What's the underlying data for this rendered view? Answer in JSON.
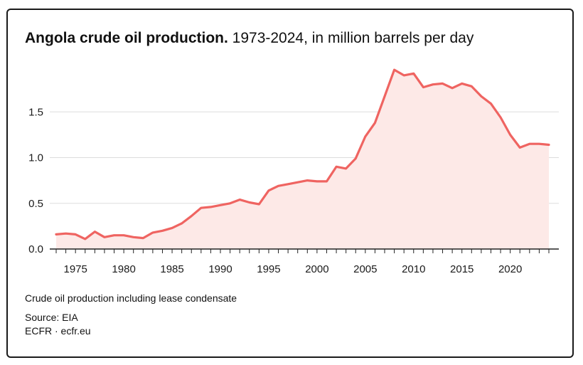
{
  "title": {
    "bold": "Angola crude oil production.",
    "rest": " 1973-2024, in million barrels per day"
  },
  "footer": {
    "note": "Crude oil production including lease condensate",
    "source": "Source: EIA",
    "credit": "ECFR · ecfr.eu"
  },
  "colors": {
    "line": "#ef6461",
    "fill": "#fde9e7",
    "grid": "#dddddd",
    "axis": "#222222"
  },
  "chart_data": {
    "type": "area",
    "title": "Angola crude oil production. 1973-2024, in million barrels per day",
    "xlabel": "",
    "ylabel": "",
    "xlim": [
      1973,
      2024
    ],
    "ylim": [
      0,
      2.0
    ],
    "grid": true,
    "x_ticks": [
      1975,
      1980,
      1985,
      1990,
      1995,
      2000,
      2005,
      2010,
      2015,
      2020
    ],
    "y_ticks": [
      0.0,
      0.5,
      1.0,
      1.5
    ],
    "y_tick_labels": [
      "0.0",
      "0.5",
      "1.0",
      "1.5"
    ],
    "series": [
      {
        "name": "Crude oil production",
        "x": [
          1973,
          1974,
          1975,
          1976,
          1977,
          1978,
          1979,
          1980,
          1981,
          1982,
          1983,
          1984,
          1985,
          1986,
          1987,
          1988,
          1989,
          1990,
          1991,
          1992,
          1993,
          1994,
          1995,
          1996,
          1997,
          1998,
          1999,
          2000,
          2001,
          2002,
          2003,
          2004,
          2005,
          2006,
          2007,
          2008,
          2009,
          2010,
          2011,
          2012,
          2013,
          2014,
          2015,
          2016,
          2017,
          2018,
          2019,
          2020,
          2021,
          2022,
          2023,
          2024
        ],
        "values": [
          0.16,
          0.17,
          0.16,
          0.11,
          0.19,
          0.13,
          0.15,
          0.15,
          0.13,
          0.12,
          0.18,
          0.2,
          0.23,
          0.28,
          0.36,
          0.45,
          0.46,
          0.48,
          0.5,
          0.54,
          0.51,
          0.49,
          0.64,
          0.69,
          0.71,
          0.73,
          0.75,
          0.74,
          0.74,
          0.9,
          0.88,
          0.99,
          1.23,
          1.38,
          1.67,
          1.96,
          1.9,
          1.92,
          1.77,
          1.8,
          1.81,
          1.76,
          1.81,
          1.78,
          1.67,
          1.59,
          1.44,
          1.25,
          1.11,
          1.15,
          1.15,
          1.14
        ]
      }
    ]
  }
}
